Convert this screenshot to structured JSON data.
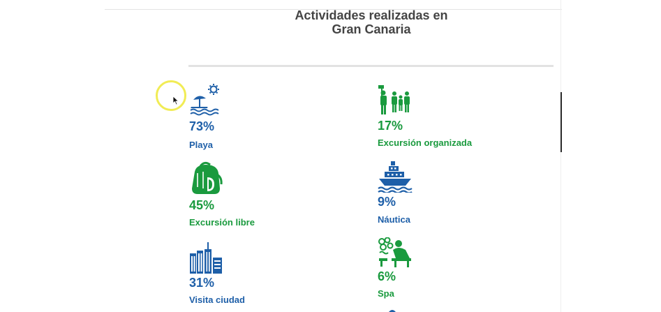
{
  "chart_data": {
    "type": "table",
    "title": "Actividades realizadas en",
    "subtitle": "Gran Canaria",
    "items": [
      {
        "label": "Playa",
        "value": 73,
        "value_text": "73%",
        "color": "#1e5fa8",
        "icon": "beach-icon"
      },
      {
        "label": "Excursión organizada",
        "value": 17,
        "value_text": "17%",
        "color": "#1a9a3e",
        "icon": "guided-tour-icon"
      },
      {
        "label": "Excursión libre",
        "value": 45,
        "value_text": "45%",
        "color": "#1a9a3e",
        "icon": "backpack-icon"
      },
      {
        "label": "Náutica",
        "value": 9,
        "value_text": "9%",
        "color": "#1e5fa8",
        "icon": "ship-icon"
      },
      {
        "label": "Visita ciudad",
        "value": 31,
        "value_text": "31%",
        "color": "#1e5fa8",
        "icon": "city-icon"
      },
      {
        "label": "Spa",
        "value": 6,
        "value_text": "6%",
        "color": "#1a9a3e",
        "icon": "spa-icon"
      }
    ]
  }
}
